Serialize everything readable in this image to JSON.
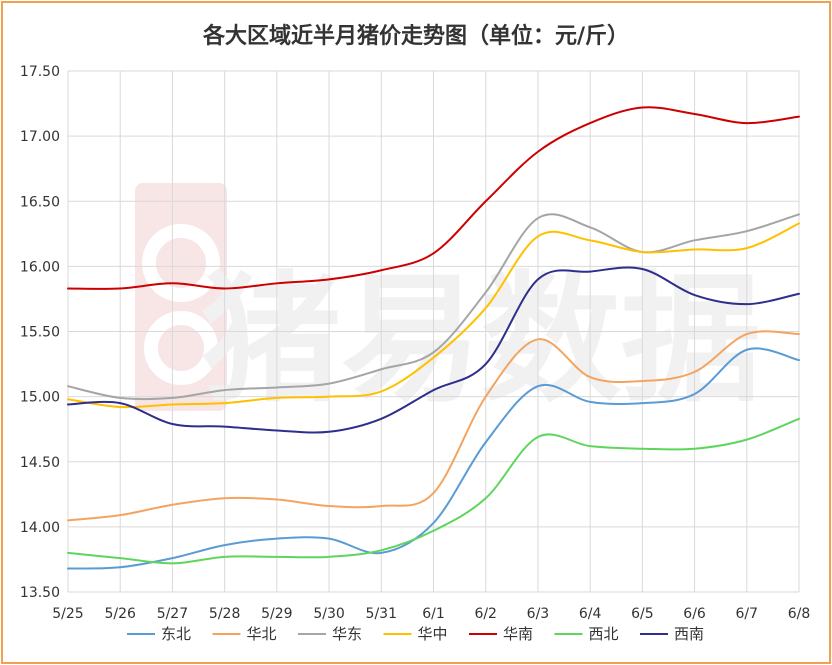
{
  "chart_data": {
    "type": "line",
    "title": "各大区域近半月猪价走势图（单位：元/斤）",
    "x": [
      "5/25",
      "5/26",
      "5/27",
      "5/28",
      "5/29",
      "5/30",
      "5/31",
      "6/1",
      "6/2",
      "6/3",
      "6/4",
      "6/5",
      "6/6",
      "6/7",
      "6/8"
    ],
    "ylim": [
      13.5,
      17.5
    ],
    "yticks": [
      "13.50",
      "14.00",
      "14.50",
      "15.00",
      "15.50",
      "16.00",
      "16.50",
      "17.00",
      "17.50"
    ],
    "grid": true,
    "legend_position": "bottom",
    "series": [
      {
        "name": "东北",
        "color": "#5b9bd5",
        "values": [
          13.68,
          13.69,
          13.76,
          13.86,
          13.91,
          13.91,
          13.8,
          14.03,
          14.65,
          15.08,
          14.96,
          14.95,
          15.02,
          15.36,
          15.28
        ]
      },
      {
        "name": "华北",
        "color": "#f4a460",
        "values": [
          14.05,
          14.09,
          14.17,
          14.22,
          14.21,
          14.16,
          14.16,
          14.26,
          15.0,
          15.44,
          15.15,
          15.12,
          15.19,
          15.48,
          15.48
        ]
      },
      {
        "name": "华东",
        "color": "#a5a5a5",
        "values": [
          15.08,
          14.99,
          14.99,
          15.05,
          15.07,
          15.1,
          15.21,
          15.34,
          15.8,
          16.37,
          16.3,
          16.11,
          16.2,
          16.27,
          16.4
        ]
      },
      {
        "name": "华中",
        "color": "#ffc000",
        "values": [
          14.98,
          14.92,
          14.94,
          14.95,
          14.99,
          15.0,
          15.04,
          15.3,
          15.68,
          16.23,
          16.2,
          16.11,
          16.13,
          16.14,
          16.33
        ]
      },
      {
        "name": "华南",
        "color": "#cc0000",
        "values": [
          15.83,
          15.83,
          15.87,
          15.83,
          15.87,
          15.9,
          15.97,
          16.1,
          16.5,
          16.88,
          17.1,
          17.22,
          17.17,
          17.1,
          17.15
        ]
      },
      {
        "name": "西北",
        "color": "#5ed65e",
        "values": [
          13.8,
          13.76,
          13.72,
          13.77,
          13.77,
          13.77,
          13.82,
          13.97,
          14.22,
          14.69,
          14.62,
          14.6,
          14.6,
          14.67,
          14.83
        ]
      },
      {
        "name": "西南",
        "color": "#2e2e8c",
        "values": [
          14.94,
          14.95,
          14.79,
          14.77,
          14.74,
          14.73,
          14.83,
          15.05,
          15.25,
          15.9,
          15.96,
          15.98,
          15.78,
          15.71,
          15.79
        ]
      }
    ]
  },
  "watermark": {
    "text": "猪易数据"
  }
}
